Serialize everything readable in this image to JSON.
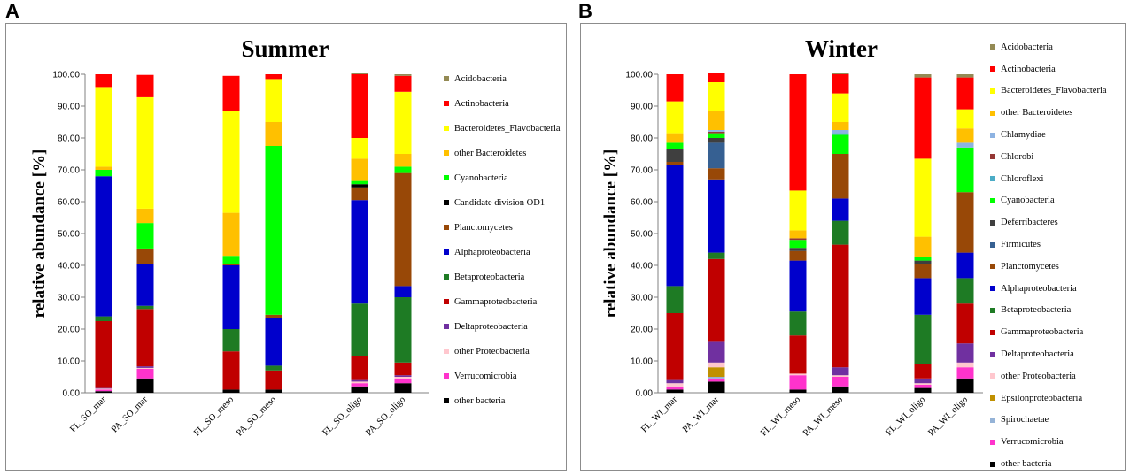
{
  "panel_labels": [
    "A",
    "B"
  ],
  "colors": {
    "Acidobacteria": "#948a54",
    "Actinobacteria": "#ff0000",
    "Bacteroidetes_Flavobacteria": "#ffff00",
    "other Bacteroidetes": "#ffc000",
    "Chlamydiae": "#8db3e2",
    "Chlorobi": "#953735",
    "Chloroflexi": "#4bacc6",
    "Cyanobacteria": "#00ff00",
    "Candidate division OD1": "#000000",
    "Deferribacteres": "#3f3f3f",
    "Firmicutes": "#366092",
    "Planctomycetes": "#984807",
    "Alphaproteobacteria": "#0000cc",
    "Betaproteobacteria": "#1e7b24",
    "Gammaproteobacteria": "#c00000",
    "Deltaproteobacteria": "#7030a0",
    "other Proteobacteria": "#ffc7ce",
    "Epsilonproteobacteria": "#c09000",
    "Spirochaetae": "#95b3d7",
    "Verrucomicrobia": "#ff33cc",
    "other bacteria": "#000000"
  },
  "chart_data": [
    {
      "type": "bar",
      "stacked": true,
      "title": "Summer",
      "ylabel": "relative abundance [%]",
      "ylim": [
        0,
        100
      ],
      "yticks": [
        "0.00",
        "10.00",
        "20.00",
        "30.00",
        "40.00",
        "50.00",
        "60.00",
        "70.00",
        "80.00",
        "90.00",
        "100.00"
      ],
      "categories": [
        "FL_SO_mar",
        "PA_SO_mar",
        "FL_SO_meso",
        "PA_SO_meso",
        "FL_SO_oligo",
        "PA_SO_oligo"
      ],
      "groups": [
        [
          0,
          1
        ],
        [
          2,
          3
        ],
        [
          4,
          5
        ]
      ],
      "legend": [
        "Acidobacteria",
        "Actinobacteria",
        "Bacteroidetes_Flavobacteria",
        "other Bacteroidetes",
        "Cyanobacteria",
        "Candidate division OD1",
        "Planctomycetes",
        "Alphaproteobacteria",
        "Betaproteobacteria",
        "Gammaproteobacteria",
        "Deltaproteobacteria",
        "other Proteobacteria",
        "Verrucomicrobia",
        "other bacteria"
      ],
      "series": [
        {
          "name": "other bacteria",
          "values": [
            0.5,
            4.5,
            1.0,
            1.0,
            2.0,
            3.0
          ]
        },
        {
          "name": "Verrucomicrobia",
          "values": [
            0.5,
            3.0,
            0.0,
            0.0,
            1.0,
            1.5
          ]
        },
        {
          "name": "other Proteobacteria",
          "values": [
            0.3,
            0.3,
            0.0,
            0.0,
            0.5,
            0.5
          ]
        },
        {
          "name": "Deltaproteobacteria",
          "values": [
            0.2,
            0.5,
            0.0,
            0.0,
            0.5,
            0.5
          ]
        },
        {
          "name": "Gammaproteobacteria",
          "values": [
            21.0,
            18.0,
            12.0,
            6.0,
            7.5,
            4.0
          ]
        },
        {
          "name": "Betaproteobacteria",
          "values": [
            1.5,
            1.0,
            7.0,
            1.5,
            16.5,
            20.5
          ]
        },
        {
          "name": "Alphaproteobacteria",
          "values": [
            44.0,
            13.0,
            20.0,
            15.0,
            32.5,
            3.5
          ]
        },
        {
          "name": "Planctomycetes",
          "values": [
            0.0,
            5.0,
            0.5,
            1.0,
            4.0,
            35.5
          ]
        },
        {
          "name": "Candidate division OD1",
          "values": [
            0.0,
            0.0,
            0.0,
            0.0,
            1.0,
            0.0
          ]
        },
        {
          "name": "Cyanobacteria",
          "values": [
            2.0,
            8.0,
            2.5,
            53.0,
            1.0,
            2.0
          ]
        },
        {
          "name": "other Bacteroidetes",
          "values": [
            1.0,
            4.5,
            13.5,
            7.5,
            7.0,
            4.0
          ]
        },
        {
          "name": "Bacteroidetes_Flavobacteria",
          "values": [
            25.0,
            35.0,
            32.0,
            13.5,
            6.5,
            19.5
          ]
        },
        {
          "name": "Actinobacteria",
          "values": [
            4.0,
            7.0,
            11.0,
            1.5,
            20.0,
            5.0
          ]
        },
        {
          "name": "Acidobacteria",
          "values": [
            0.0,
            0.0,
            0.0,
            0.0,
            0.5,
            0.5
          ]
        }
      ]
    },
    {
      "type": "bar",
      "stacked": true,
      "title": "Winter",
      "ylabel": "relative abundance [%]",
      "ylim": [
        0,
        100
      ],
      "yticks": [
        "0.00",
        "10.00",
        "20.00",
        "30.00",
        "40.00",
        "50.00",
        "60.00",
        "70.00",
        "80.00",
        "90.00",
        "100.00"
      ],
      "categories": [
        "FL_WI_mar",
        "PA_WI_mar",
        "FL_WI_meso",
        "PA_WI_meso",
        "FL_WI_oligo",
        "PA_WI_oligo"
      ],
      "groups": [
        [
          0,
          1
        ],
        [
          2,
          3
        ],
        [
          4,
          5
        ]
      ],
      "legend": [
        "Acidobacteria",
        "Actinobacteria",
        "Bacteroidetes_Flavobacteria",
        "other Bacteroidetes",
        "Chlamydiae",
        "Chlorobi",
        "Chloroflexi",
        "Cyanobacteria",
        "Deferribacteres",
        "Firmicutes",
        "Planctomycetes",
        "Alphaproteobacteria",
        "Betaproteobacteria",
        "Gammaproteobacteria",
        "Deltaproteobacteria",
        "other Proteobacteria",
        "Epsilonproteobacteria",
        "Spirochaetae",
        "Verrucomicrobia",
        "other bacteria"
      ],
      "series": [
        {
          "name": "other bacteria",
          "values": [
            1.0,
            3.5,
            1.0,
            2.0,
            1.5,
            4.5
          ]
        },
        {
          "name": "Verrucomicrobia",
          "values": [
            1.0,
            1.0,
            4.5,
            3.0,
            1.0,
            3.5
          ]
        },
        {
          "name": "Spirochaetae",
          "values": [
            0.0,
            0.5,
            0.0,
            0.0,
            0.0,
            0.0
          ]
        },
        {
          "name": "Epsilonproteobacteria",
          "values": [
            0.0,
            3.0,
            0.0,
            0.0,
            0.0,
            0.0
          ]
        },
        {
          "name": "other Proteobacteria",
          "values": [
            1.0,
            1.5,
            0.5,
            0.5,
            0.5,
            1.5
          ]
        },
        {
          "name": "Deltaproteobacteria",
          "values": [
            1.0,
            6.5,
            0.0,
            2.5,
            1.5,
            6.0
          ]
        },
        {
          "name": "Gammaproteobacteria",
          "values": [
            21.0,
            26.0,
            12.0,
            38.5,
            4.5,
            12.5
          ]
        },
        {
          "name": "Betaproteobacteria",
          "values": [
            8.5,
            2.0,
            7.5,
            7.5,
            15.5,
            8.0
          ]
        },
        {
          "name": "Alphaproteobacteria",
          "values": [
            38.0,
            23.0,
            16.0,
            7.0,
            11.5,
            8.0
          ]
        },
        {
          "name": "Planctomycetes",
          "values": [
            1.0,
            3.5,
            3.0,
            14.0,
            4.5,
            19.0
          ]
        },
        {
          "name": "Firmicutes",
          "values": [
            0.0,
            8.0,
            0.0,
            0.0,
            0.0,
            0.0
          ]
        },
        {
          "name": "Deferribacteres",
          "values": [
            4.0,
            1.5,
            1.0,
            0.0,
            1.0,
            0.0
          ]
        },
        {
          "name": "Cyanobacteria",
          "values": [
            2.0,
            1.5,
            2.5,
            6.0,
            1.0,
            14.0
          ]
        },
        {
          "name": "Chloroflexi",
          "values": [
            0.0,
            0.0,
            0.0,
            0.5,
            0.0,
            0.0
          ]
        },
        {
          "name": "Chlorobi",
          "values": [
            0.0,
            0.5,
            0.5,
            0.0,
            0.0,
            0.0
          ]
        },
        {
          "name": "Chlamydiae",
          "values": [
            0.0,
            0.5,
            0.0,
            1.0,
            0.0,
            1.5
          ]
        },
        {
          "name": "other Bacteroidetes",
          "values": [
            3.0,
            6.0,
            2.5,
            2.5,
            6.5,
            4.5
          ]
        },
        {
          "name": "Bacteroidetes_Flavobacteria",
          "values": [
            10.0,
            9.0,
            12.5,
            9.0,
            24.5,
            6.0
          ]
        },
        {
          "name": "Actinobacteria",
          "values": [
            8.5,
            3.0,
            36.5,
            6.0,
            25.5,
            10.0
          ]
        },
        {
          "name": "Acidobacteria",
          "values": [
            0.0,
            0.0,
            0.0,
            0.5,
            1.0,
            1.0
          ]
        }
      ]
    }
  ]
}
